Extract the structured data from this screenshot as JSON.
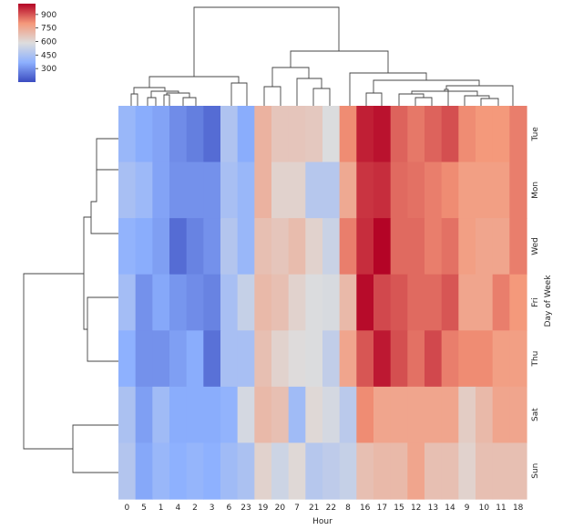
{
  "chart_data": {
    "type": "heatmap",
    "title": "",
    "xlabel": "Hour",
    "ylabel": "Day of Week",
    "colormap": "coolwarm",
    "colorbar": {
      "vmin": 150,
      "vmax": 1020,
      "ticks": [
        "900",
        "750",
        "600",
        "450",
        "300"
      ],
      "tick_values": [
        900,
        750,
        600,
        450,
        300
      ]
    },
    "columns": [
      "0",
      "5",
      "1",
      "4",
      "2",
      "3",
      "6",
      "23",
      "19",
      "20",
      "7",
      "21",
      "22",
      "8",
      "16",
      "17",
      "15",
      "12",
      "13",
      "14",
      "9",
      "10",
      "11",
      "18"
    ],
    "rows": [
      "Tue",
      "Mon",
      "Wed",
      "Fri",
      "Thu",
      "Sat",
      "Sun"
    ],
    "values": [
      [
        400,
        360,
        340,
        290,
        260,
        220,
        460,
        360,
        720,
        660,
        660,
        650,
        580,
        820,
        980,
        1000,
        880,
        850,
        880,
        910,
        820,
        800,
        800,
        840
      ],
      [
        440,
        410,
        340,
        300,
        300,
        300,
        440,
        400,
        720,
        620,
        620,
        480,
        480,
        750,
        950,
        960,
        870,
        860,
        840,
        820,
        780,
        780,
        780,
        840
      ],
      [
        380,
        360,
        330,
        220,
        270,
        300,
        470,
        400,
        680,
        660,
        690,
        620,
        530,
        840,
        960,
        1020,
        870,
        870,
        840,
        860,
        780,
        760,
        760,
        840
      ],
      [
        430,
        300,
        350,
        310,
        290,
        270,
        440,
        520,
        700,
        680,
        620,
        580,
        570,
        700,
        1010,
        920,
        900,
        870,
        870,
        900,
        760,
        760,
        840,
        800
      ],
      [
        370,
        300,
        300,
        330,
        360,
        230,
        440,
        440,
        680,
        620,
        590,
        580,
        510,
        760,
        900,
        990,
        910,
        860,
        920,
        840,
        820,
        820,
        780,
        780
      ],
      [
        450,
        330,
        420,
        360,
        360,
        360,
        380,
        560,
        700,
        680,
        420,
        600,
        560,
        490,
        820,
        760,
        760,
        760,
        760,
        760,
        640,
        700,
        760,
        760
      ],
      [
        470,
        350,
        400,
        370,
        390,
        370,
        420,
        450,
        620,
        540,
        600,
        480,
        500,
        520,
        680,
        700,
        700,
        760,
        680,
        680,
        620,
        680,
        680,
        680
      ]
    ],
    "grid": false,
    "dendrograms": [
      "columns",
      "rows"
    ]
  }
}
